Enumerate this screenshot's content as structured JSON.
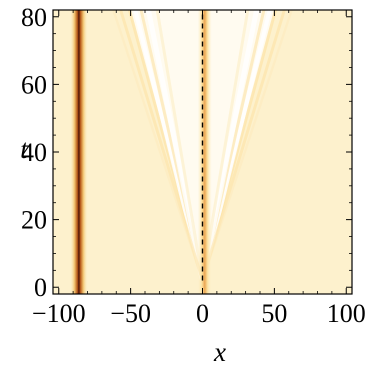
{
  "chart_data": {
    "type": "heatmap",
    "title": "",
    "xlabel": "x",
    "ylabel": "t",
    "xlim": [
      -104,
      104
    ],
    "ylim": [
      -2,
      82
    ],
    "x_ticks": [
      -100,
      -50,
      0,
      50,
      100
    ],
    "y_ticks": [
      0,
      20,
      40,
      60,
      80
    ],
    "x_tick_labels": [
      "−100",
      "−50",
      "0",
      "50",
      "100"
    ],
    "y_tick_labels": [
      "0",
      "20",
      "40",
      "60",
      "80"
    ],
    "colormap": [
      "#fdf1cd",
      "#fde7ac",
      "#f3c672",
      "#e0973c",
      "#b55618",
      "#7a2a0e",
      "#4a1208"
    ],
    "background_color": "#fdf1cd",
    "stationary_bands": [
      {
        "x": -86,
        "intensity": 1.0,
        "core_color": "#5a1a0a"
      },
      {
        "x": 1.5,
        "intensity": 0.55,
        "core_color": "#e8a24c"
      }
    ],
    "radiation_cone": {
      "origin": [
        0,
        0
      ],
      "speed": 0.62,
      "tip_t": 2
    },
    "reference_line": {
      "x": 0,
      "t_range": [
        2,
        82
      ],
      "style": "dashed"
    },
    "grid": false
  }
}
